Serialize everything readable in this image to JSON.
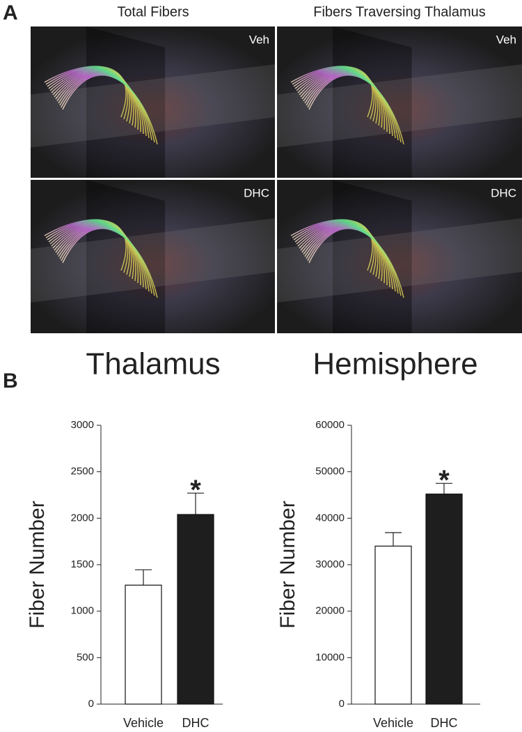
{
  "panel_a": {
    "label": "A",
    "columns": [
      "Total Fibers",
      "Fibers Traversing Thalamus"
    ],
    "rows": [
      "Veh",
      "DHC"
    ]
  },
  "panel_b": {
    "label": "B"
  },
  "chart_data": [
    {
      "type": "bar",
      "title": "Thalamus",
      "ylabel": "Fiber Number",
      "categories": [
        "Vehicle",
        "DHC"
      ],
      "values": [
        1280,
        2040
      ],
      "errors": [
        165,
        230
      ],
      "colors": [
        "#ffffff",
        "#1e1e1e"
      ],
      "ylim": [
        0,
        3000
      ],
      "yticks": [
        0,
        500,
        1000,
        1500,
        2000,
        2500,
        3000
      ],
      "annotations": [
        {
          "text": "*",
          "x": "DHC"
        }
      ]
    },
    {
      "type": "bar",
      "title": "Hemisphere",
      "ylabel": "Fiber Number",
      "categories": [
        "Vehicle",
        "DHC"
      ],
      "values": [
        34000,
        45200
      ],
      "errors": [
        2900,
        2300
      ],
      "colors": [
        "#ffffff",
        "#1e1e1e"
      ],
      "ylim": [
        0,
        60000
      ],
      "yticks": [
        0,
        10000,
        20000,
        30000,
        40000,
        50000,
        60000
      ],
      "annotations": [
        {
          "text": "*",
          "x": "DHC"
        }
      ]
    }
  ]
}
